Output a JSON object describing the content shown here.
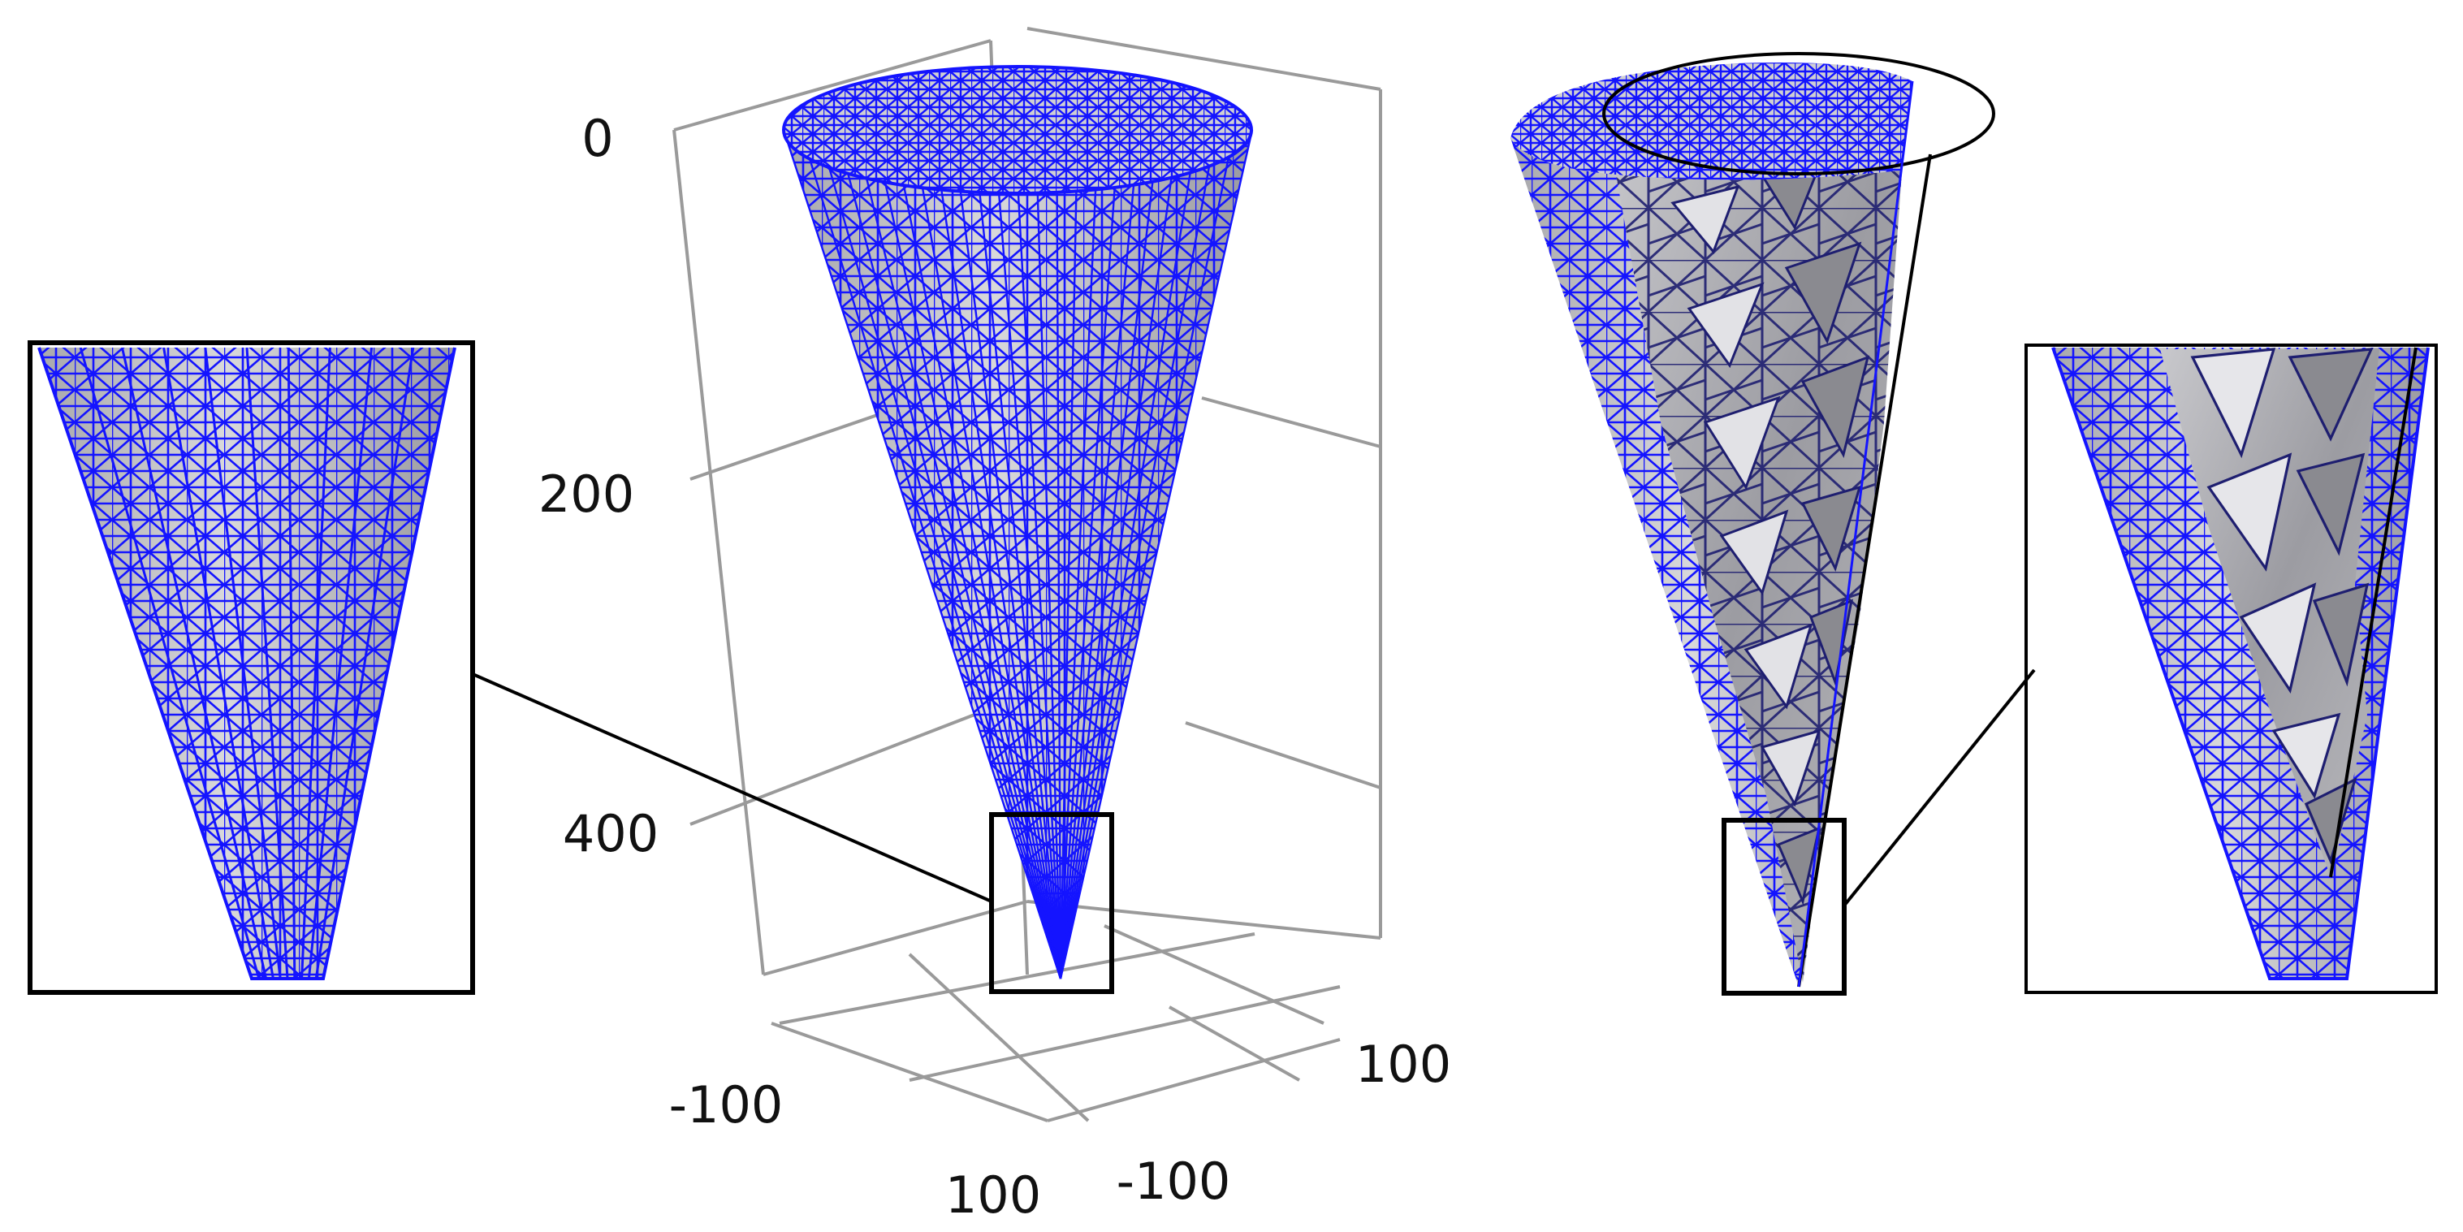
{
  "figure": {
    "colors": {
      "mesh_edge": "#1414ff",
      "surface_light": "#d4d4d6",
      "surface_mid": "#b4b4b8",
      "surface_dark": "#8a8a90",
      "grid": "#9a9a9a",
      "frame": "#000000",
      "background": "#ffffff"
    },
    "z_axis": {
      "ticks": [
        {
          "label": "0"
        },
        {
          "label": "200"
        },
        {
          "label": "400"
        }
      ]
    },
    "x_axis": {
      "ticks": [
        {
          "label": "-100"
        },
        {
          "label": "100"
        }
      ]
    },
    "y_axis": {
      "ticks": [
        {
          "label": "100"
        },
        {
          "label": "-100"
        }
      ]
    },
    "panels": [
      {
        "id": "full-cone",
        "description_icon": "meshed-cone-icon"
      },
      {
        "id": "cut-cone",
        "description_icon": "sectioned-cone-icon"
      },
      {
        "id": "tip-zoom-left",
        "description_icon": "zoom-inset-icon"
      },
      {
        "id": "tip-zoom-right",
        "description_icon": "zoom-inset-icon"
      }
    ]
  }
}
